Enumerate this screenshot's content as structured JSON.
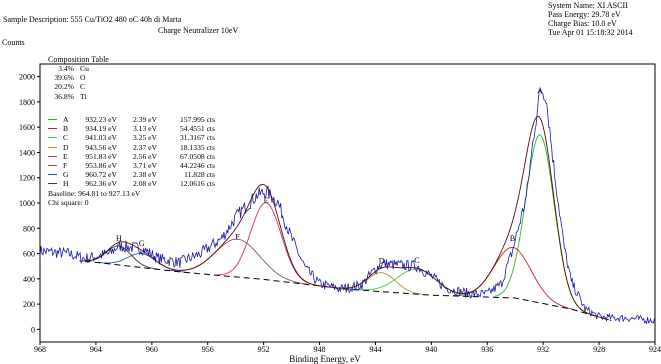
{
  "header": {
    "sample_description": "Sample Description: 555 Cu/TiO2 480 oC 40h di Marta",
    "charge_neutralizer": "Charge Neutralizer 10eV",
    "y_title": "Counts",
    "system_name": "System Name:  XI ASCII",
    "pass_energy": "Pass Energy:  29.78 eV",
    "charge_bias": "Charge Bias:   10.0 eV",
    "timestamp": "Tue Apr 01 15:18:32 2014"
  },
  "composition_table": {
    "title": "Composition Table",
    "rows": [
      {
        "value": "3.4%",
        "element": "Cu"
      },
      {
        "value": "39.6%",
        "element": "O"
      },
      {
        "value": "20.2%",
        "element": "C"
      },
      {
        "value": "36.8%",
        "element": "Ti"
      }
    ]
  },
  "peak_table": [
    {
      "name": "A",
      "be": "932.23 eV",
      "fwhm": "2.39 eV",
      "area": "157.995 cts",
      "color": "#22bb22"
    },
    {
      "name": "B",
      "be": "934.19 eV",
      "fwhm": "3.13 eV",
      "area": "54.4551 cts",
      "color": "#cc2222"
    },
    {
      "name": "C",
      "be": "941.03 eV",
      "fwhm": "3.25 eV",
      "area": "31.3167 cts",
      "color": "#44cc44"
    },
    {
      "name": "D",
      "be": "943.56 eV",
      "fwhm": "2.37 eV",
      "area": "18.1335 cts",
      "color": "#aa9933"
    },
    {
      "name": "E",
      "be": "951.83 eV",
      "fwhm": "2.56 eV",
      "area": "67.0508 cts",
      "color": "#cc3366"
    },
    {
      "name": "F",
      "be": "953.86 eV",
      "fwhm": "3.71 eV",
      "area": "44.2246 cts",
      "color": "#885577"
    },
    {
      "name": "G",
      "be": "960.72 eV",
      "fwhm": "2.38 eV",
      "area": "11.828 cts",
      "color": "#3355cc"
    },
    {
      "name": "H",
      "be": "962.36 eV",
      "fwhm": "2.08 eV",
      "area": "12.0616 cts",
      "color": "#443344"
    }
  ],
  "baseline_text": "Baseline:  964.81 to 927.13 eV",
  "chi_square_text": "Chi square:  0",
  "chart_data": {
    "type": "line",
    "xlabel": "Binding Energy, eV",
    "ylabel": "Counts",
    "xlim": [
      968,
      924
    ],
    "ylim": [
      -100,
      2100
    ],
    "x_ticks": [
      968,
      964,
      960,
      956,
      952,
      948,
      944,
      940,
      936,
      932,
      928,
      924
    ],
    "y_ticks": [
      0,
      200,
      400,
      600,
      800,
      1000,
      1200,
      1400,
      1600,
      1800,
      2000
    ],
    "colors": {
      "data": "#1a1aa8",
      "envelope": "#5a0b0b",
      "baseline": "#000000"
    },
    "peak_labels": [
      {
        "label": "A",
        "x": 932.23,
        "y": 1870
      },
      {
        "label": "B",
        "x": 934.19,
        "y": 700
      },
      {
        "label": "C",
        "x": 941.03,
        "y": 525
      },
      {
        "label": "D",
        "x": 943.56,
        "y": 520
      },
      {
        "label": "E",
        "x": 951.83,
        "y": 1000
      },
      {
        "label": "F",
        "x": 953.86,
        "y": 710
      },
      {
        "label": "G",
        "x": 960.72,
        "y": 660
      },
      {
        "label": "H",
        "x": 962.36,
        "y": 700
      }
    ],
    "baseline": [
      [
        964.81,
        540
      ],
      [
        958,
        455
      ],
      [
        952,
        395
      ],
      [
        946,
        318
      ],
      [
        940,
        270
      ],
      [
        934,
        248
      ],
      [
        930,
        160
      ],
      [
        927.13,
        70
      ]
    ],
    "series": [
      {
        "x": [
          968,
          966,
          964.8,
          963,
          962.4,
          961.6,
          960.7,
          959.5,
          958,
          956.5,
          955,
          953.9,
          952.5,
          951.8,
          951,
          950,
          949,
          948,
          946.5,
          945,
          944,
          943.5,
          942.5,
          941,
          940,
          939,
          938,
          937,
          936,
          935,
          934.2,
          933.2,
          932.6,
          932.2,
          931.8,
          931.2,
          930.5,
          930,
          929,
          928,
          927,
          926,
          925,
          924
        ],
        "y": [
          620,
          600,
          560,
          600,
          660,
          650,
          640,
          560,
          530,
          600,
          720,
          900,
          1060,
          1090,
          1010,
          720,
          480,
          360,
          320,
          350,
          480,
          520,
          510,
          500,
          420,
          330,
          300,
          280,
          280,
          360,
          620,
          1050,
          1600,
          1900,
          1850,
          1250,
          650,
          380,
          160,
          100,
          90,
          90,
          80,
          70
        ]
      }
    ]
  }
}
